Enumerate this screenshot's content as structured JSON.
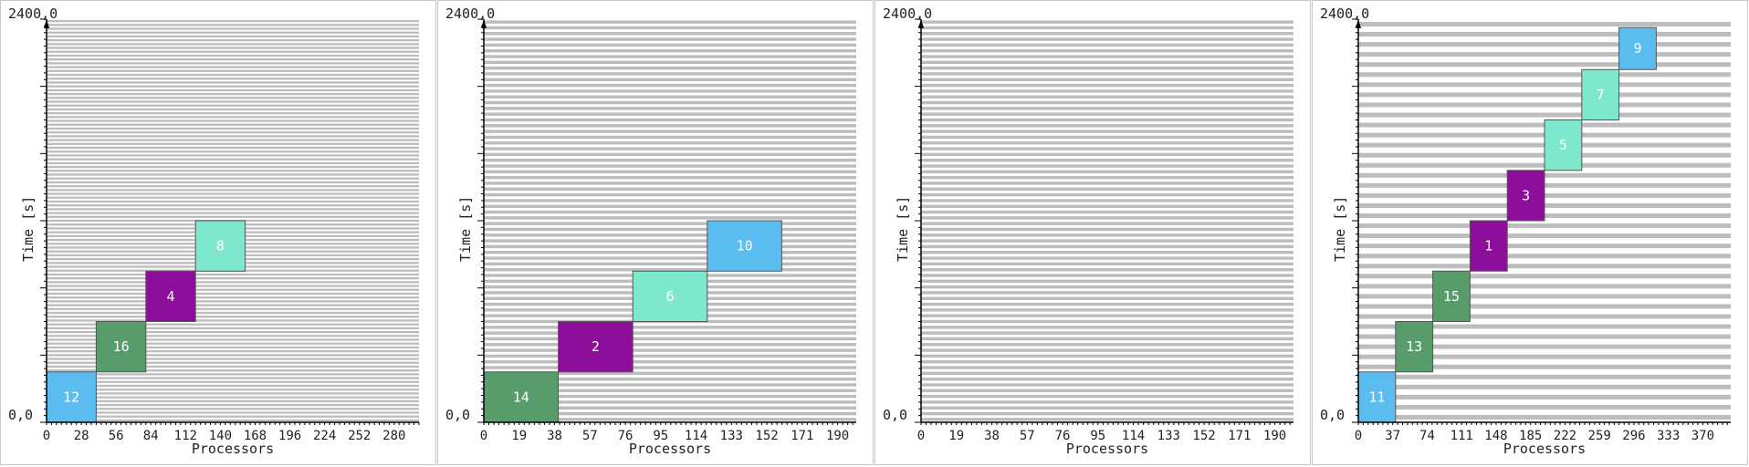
{
  "colors": {
    "blue": "#5bbcef",
    "green": "#589c6c",
    "purple": "#8e0e9c",
    "teal": "#7ee8cd",
    "grid": "#bdbdbd",
    "border": "#555555"
  },
  "chart_data": [
    {
      "type": "gantt",
      "top_left_label": "2400,0",
      "origin_label": "0,0",
      "xlabel": "Processors",
      "ylabel": "Time [s]",
      "ylim": [
        0,
        2400
      ],
      "x_ticks": [
        "0",
        "28",
        "56",
        "84",
        "112",
        "140",
        "168",
        "196",
        "224",
        "252",
        "280"
      ],
      "x_tick_step": 28,
      "xlim": [
        0,
        300
      ],
      "grid_rows": 105,
      "jobs": [
        {
          "label": "12",
          "x0": 0,
          "x1": 40,
          "t0": 0,
          "t1": 300,
          "color": "blue"
        },
        {
          "label": "16",
          "x0": 40,
          "x1": 80,
          "t0": 300,
          "t1": 600,
          "color": "green"
        },
        {
          "label": "4",
          "x0": 80,
          "x1": 120,
          "t0": 600,
          "t1": 900,
          "color": "purple"
        },
        {
          "label": "8",
          "x0": 120,
          "x1": 160,
          "t0": 900,
          "t1": 1200,
          "color": "teal"
        }
      ]
    },
    {
      "type": "gantt",
      "top_left_label": "2400,0",
      "origin_label": "0,0",
      "xlabel": "Processors",
      "ylabel": "Time [s]",
      "ylim": [
        0,
        2400
      ],
      "x_ticks": [
        "0",
        "19",
        "38",
        "57",
        "76",
        "95",
        "114",
        "133",
        "152",
        "171",
        "190"
      ],
      "x_tick_step": 19,
      "xlim": [
        0,
        200
      ],
      "grid_rows": 70,
      "jobs": [
        {
          "label": "14",
          "x0": 0,
          "x1": 40,
          "t0": 0,
          "t1": 300,
          "color": "green"
        },
        {
          "label": "2",
          "x0": 40,
          "x1": 80,
          "t0": 300,
          "t1": 600,
          "color": "purple"
        },
        {
          "label": "6",
          "x0": 80,
          "x1": 120,
          "t0": 600,
          "t1": 900,
          "color": "teal"
        },
        {
          "label": "10",
          "x0": 120,
          "x1": 160,
          "t0": 900,
          "t1": 1200,
          "color": "blue"
        }
      ]
    },
    {
      "type": "gantt",
      "top_left_label": "2400,0",
      "origin_label": "0,0",
      "xlabel": "Processors",
      "ylabel": "Time [s]",
      "ylim": [
        0,
        2400
      ],
      "x_ticks": [
        "0",
        "19",
        "38",
        "57",
        "76",
        "95",
        "114",
        "133",
        "152",
        "171",
        "190"
      ],
      "x_tick_step": 19,
      "xlim": [
        0,
        200
      ],
      "grid_rows": 70,
      "jobs": []
    },
    {
      "type": "gantt",
      "top_left_label": "2400,0",
      "origin_label": "0,0",
      "xlabel": "Processors",
      "ylabel": "Time [s]",
      "ylim": [
        0,
        2400
      ],
      "x_ticks": [
        "0",
        "37",
        "74",
        "111",
        "148",
        "185",
        "222",
        "259",
        "296",
        "333",
        "370"
      ],
      "x_tick_step": 37,
      "xlim": [
        0,
        400
      ],
      "grid_rows": 40,
      "jobs": [
        {
          "label": "11",
          "x0": 0,
          "x1": 40,
          "t0": 0,
          "t1": 300,
          "color": "blue"
        },
        {
          "label": "13",
          "x0": 40,
          "x1": 80,
          "t0": 300,
          "t1": 600,
          "color": "green"
        },
        {
          "label": "15",
          "x0": 80,
          "x1": 120,
          "t0": 600,
          "t1": 900,
          "color": "green"
        },
        {
          "label": "1",
          "x0": 120,
          "x1": 160,
          "t0": 900,
          "t1": 1200,
          "color": "purple"
        },
        {
          "label": "3",
          "x0": 160,
          "x1": 200,
          "t0": 1200,
          "t1": 1500,
          "color": "purple"
        },
        {
          "label": "5",
          "x0": 200,
          "x1": 240,
          "t0": 1500,
          "t1": 1800,
          "color": "teal"
        },
        {
          "label": "7",
          "x0": 240,
          "x1": 280,
          "t0": 1800,
          "t1": 2100,
          "color": "teal"
        },
        {
          "label": "9",
          "x0": 280,
          "x1": 320,
          "t0": 2100,
          "t1": 2350,
          "color": "blue"
        }
      ]
    }
  ]
}
